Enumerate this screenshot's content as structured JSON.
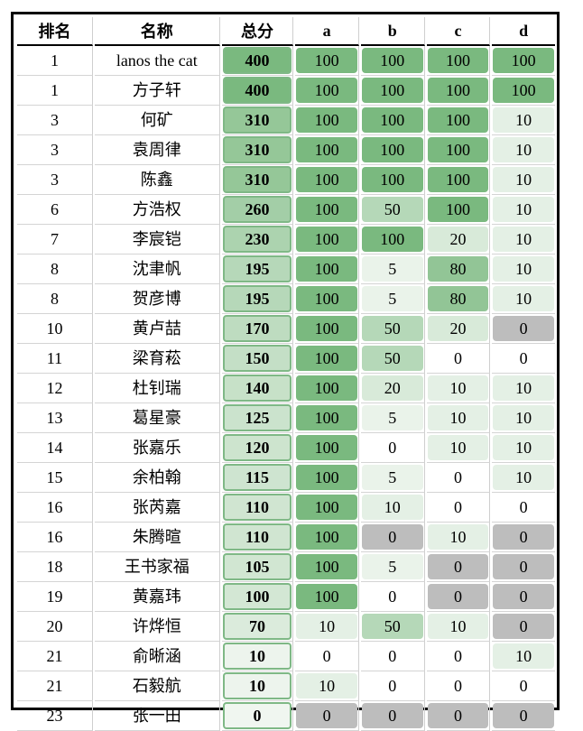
{
  "headers": [
    "排名",
    "名称",
    "总分",
    "a",
    "b",
    "c",
    "d"
  ],
  "rows": [
    {
      "rank": "1",
      "name": "lanos the cat",
      "total": "400",
      "a": "100",
      "b": "100",
      "c": "100",
      "d": "100"
    },
    {
      "rank": "1",
      "name": "方子轩",
      "total": "400",
      "a": "100",
      "b": "100",
      "c": "100",
      "d": "100"
    },
    {
      "rank": "3",
      "name": "何矿",
      "total": "310",
      "a": "100",
      "b": "100",
      "c": "100",
      "d": "10"
    },
    {
      "rank": "3",
      "name": "袁周律",
      "total": "310",
      "a": "100",
      "b": "100",
      "c": "100",
      "d": "10"
    },
    {
      "rank": "3",
      "name": "陈鑫",
      "total": "310",
      "a": "100",
      "b": "100",
      "c": "100",
      "d": "10"
    },
    {
      "rank": "6",
      "name": "方浩权",
      "total": "260",
      "a": "100",
      "b": "50",
      "c": "100",
      "d": "10"
    },
    {
      "rank": "7",
      "name": "李宸铠",
      "total": "230",
      "a": "100",
      "b": "100",
      "c": "20",
      "d": "10"
    },
    {
      "rank": "8",
      "name": "沈聿帆",
      "total": "195",
      "a": "100",
      "b": "5",
      "c": "80",
      "d": "10"
    },
    {
      "rank": "8",
      "name": "贺彦博",
      "total": "195",
      "a": "100",
      "b": "5",
      "c": "80",
      "d": "10"
    },
    {
      "rank": "10",
      "name": "黄卢喆",
      "total": "170",
      "a": "100",
      "b": "50",
      "c": "20",
      "d": "0"
    },
    {
      "rank": "11",
      "name": "梁育菘",
      "total": "150",
      "a": "100",
      "b": "50",
      "c": "0",
      "d": "0"
    },
    {
      "rank": "12",
      "name": "杜钊瑞",
      "total": "140",
      "a": "100",
      "b": "20",
      "c": "10",
      "d": "10"
    },
    {
      "rank": "13",
      "name": "葛星豪",
      "total": "125",
      "a": "100",
      "b": "5",
      "c": "10",
      "d": "10"
    },
    {
      "rank": "14",
      "name": "张嘉乐",
      "total": "120",
      "a": "100",
      "b": "0",
      "c": "10",
      "d": "10"
    },
    {
      "rank": "15",
      "name": "余柏翰",
      "total": "115",
      "a": "100",
      "b": "5",
      "c": "0",
      "d": "10"
    },
    {
      "rank": "16",
      "name": "张芮嘉",
      "total": "110",
      "a": "100",
      "b": "10",
      "c": "0",
      "d": "0"
    },
    {
      "rank": "16",
      "name": "朱腾暄",
      "total": "110",
      "a": "100",
      "b": "0",
      "c": "10",
      "d": "0"
    },
    {
      "rank": "18",
      "name": "王书家福",
      "total": "105",
      "a": "100",
      "b": "5",
      "c": "0",
      "d": "0"
    },
    {
      "rank": "19",
      "name": "黄嘉玮",
      "total": "100",
      "a": "100",
      "b": "0",
      "c": "0",
      "d": "0"
    },
    {
      "rank": "20",
      "name": "许烨恒",
      "total": "70",
      "a": "10",
      "b": "50",
      "c": "10",
      "d": "0"
    },
    {
      "rank": "21",
      "name": "俞晰涵",
      "total": "10",
      "a": "0",
      "b": "0",
      "c": "0",
      "d": "10"
    },
    {
      "rank": "21",
      "name": "石毅航",
      "total": "10",
      "a": "10",
      "b": "0",
      "c": "0",
      "d": "0"
    },
    {
      "rank": "23",
      "name": "张一田",
      "total": "0",
      "a": "0",
      "b": "0",
      "c": "0",
      "d": "0"
    }
  ],
  "gray_cells": [
    [
      9,
      "d"
    ],
    [
      16,
      "b"
    ],
    [
      16,
      "d"
    ],
    [
      17,
      "c"
    ],
    [
      17,
      "d"
    ],
    [
      18,
      "c"
    ],
    [
      18,
      "d"
    ],
    [
      19,
      "d"
    ],
    [
      22,
      "a"
    ],
    [
      22,
      "b"
    ],
    [
      22,
      "c"
    ],
    [
      22,
      "d"
    ]
  ],
  "colors": {
    "gray": "#bdbdbd",
    "green_max": "#7ab97f"
  }
}
